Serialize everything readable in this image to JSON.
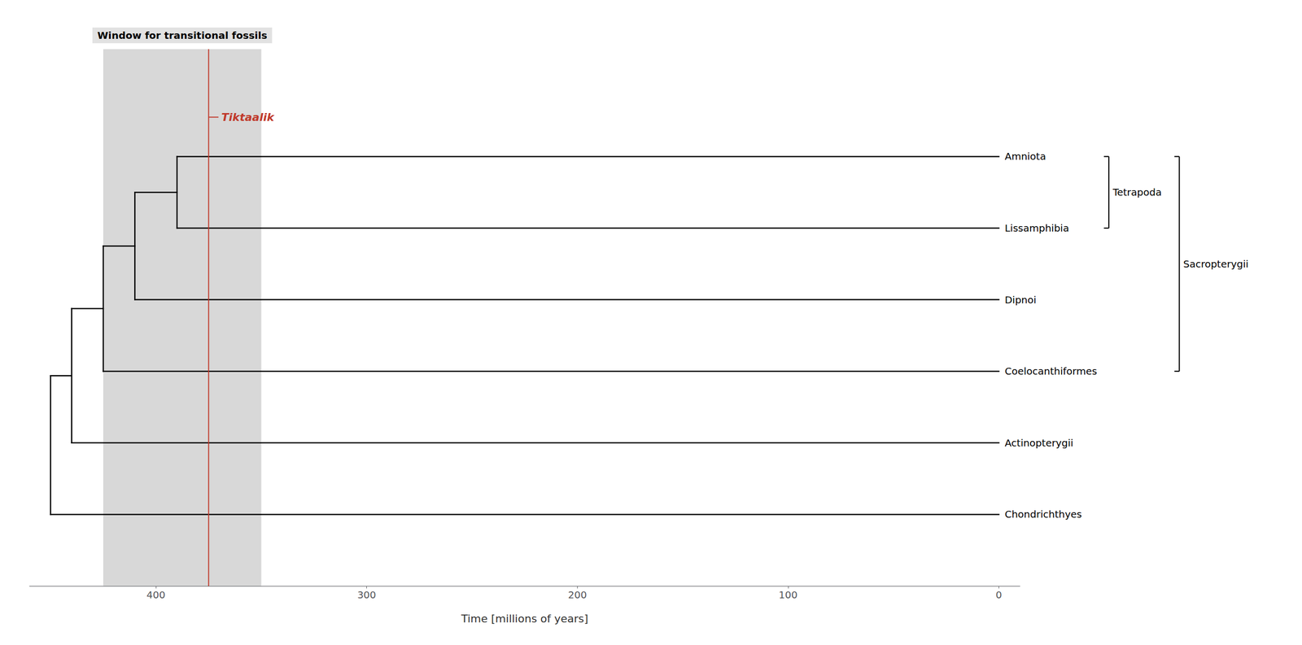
{
  "chart_data": {
    "type": "cladogram",
    "xlabel": "Time [millions of years]",
    "xlim": [
      460,
      -10
    ],
    "xticks": [
      400,
      300,
      200,
      100,
      0
    ],
    "categories": [
      "Amniota",
      "Lissamphibia",
      "Dipnoi",
      "Coelocanthiformes",
      "Actinopterygii",
      "Chondrichthyes"
    ],
    "tip_x": 0,
    "color": "#000000",
    "tree": {
      "x": 450,
      "children": [
        {
          "x": 440,
          "children": [
            {
              "x": 425,
              "children": [
                {
                  "x": 410,
                  "children": [
                    {
                      "x": 390,
                      "children": [
                        "Amniota",
                        "Lissamphibia"
                      ]
                    },
                    "Dipnoi"
                  ]
                },
                "Coelocanthiformes"
              ]
            },
            "Actinopterygii"
          ]
        },
        "Chondrichthyes"
      ]
    },
    "window": {
      "label": "Window for transitional fossils",
      "xmin": 350,
      "xmax": 425,
      "color": "#d8d8d8"
    },
    "marker_line": {
      "label": "Tiktaalik",
      "x": 375,
      "color": "#c0392b"
    },
    "clades": [
      {
        "name": "Tetrapoda",
        "from": "Amniota",
        "to": "Lissamphibia"
      },
      {
        "name": "Sacropterygii",
        "from": "Amniota",
        "to": "Coelocanthiformes"
      }
    ]
  }
}
